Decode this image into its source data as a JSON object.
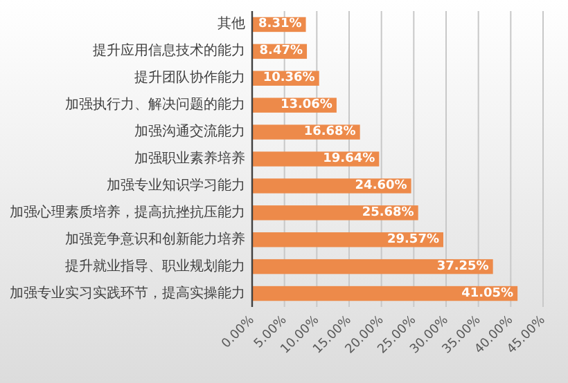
{
  "chart_data": {
    "type": "bar",
    "orientation": "horizontal",
    "categories": [
      "其他",
      "提升应用信息技术的能力",
      "提升团队协作能力",
      "加强执行力、解决问题的能力",
      "加强沟通交流能力",
      "加强职业素养培养",
      "加强专业知识学习能力",
      "加强心理素质培养，提高抗挫抗压能力",
      "加强竞争意识和创新能力培养",
      "提升就业指导、职业规划能力",
      "加强专业实习实践环节，提高实操能力"
    ],
    "values": [
      8.31,
      8.47,
      10.36,
      13.06,
      16.68,
      19.64,
      24.6,
      25.68,
      29.57,
      37.25,
      41.05
    ],
    "value_labels": [
      "8.31%",
      "8.47%",
      "10.36%",
      "13.06%",
      "16.68%",
      "19.64%",
      "24.60%",
      "25.68%",
      "29.57%",
      "37.25%",
      "41.05%"
    ],
    "color": "#ed8a4a",
    "xlim": [
      0,
      45
    ],
    "xticks": [
      {
        "value": 0,
        "label": "0.00%"
      },
      {
        "value": 5,
        "label": "5.00%"
      },
      {
        "value": 10,
        "label": "10.00%"
      },
      {
        "value": 15,
        "label": "15.00%"
      },
      {
        "value": 20,
        "label": "20.00%"
      },
      {
        "value": 25,
        "label": "25.00%"
      },
      {
        "value": 30,
        "label": "30.00%"
      },
      {
        "value": 35,
        "label": "35.00%"
      },
      {
        "value": 40,
        "label": "40.00%"
      },
      {
        "value": 45,
        "label": "45.00%"
      }
    ],
    "grid": "x"
  }
}
